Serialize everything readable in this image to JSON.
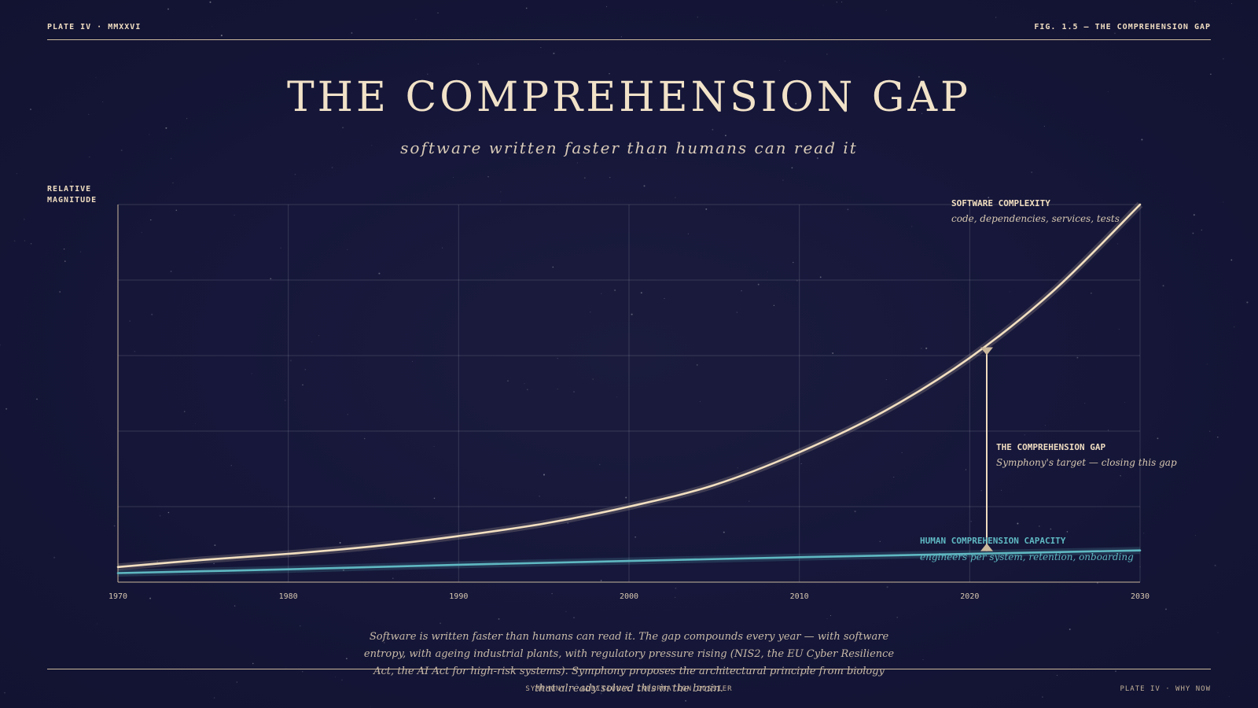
{
  "header": {
    "left": "PLATE  IV  ·  MMXXVI",
    "right": "FIG. 1.5  —  THE COMPREHENSION GAP"
  },
  "title": "THE COMPREHENSION GAP",
  "subtitle": "software written faster than humans can read it",
  "chart_data": {
    "type": "line",
    "ylabel_lines": [
      "RELATIVE",
      "MAGNITUDE"
    ],
    "xlim": [
      1970,
      2030
    ],
    "ylim": [
      0,
      100
    ],
    "x_ticks": [
      1970,
      1980,
      1990,
      2000,
      2010,
      2020,
      2030
    ],
    "grid": true,
    "series": [
      {
        "name": "SOFTWARE  COMPLEXITY",
        "description": "code, dependencies, services, tests",
        "color": "#f2dfc0",
        "x": [
          1970,
          1975,
          1980,
          1985,
          1990,
          1995,
          2000,
          2005,
          2010,
          2015,
          2020,
          2025,
          2030
        ],
        "y": [
          4.0,
          5.9,
          7.5,
          9.5,
          12.2,
          15.5,
          20.0,
          25.7,
          34.4,
          45.3,
          59.4,
          77.5,
          100.0
        ]
      },
      {
        "name": "HUMAN  COMPREHENSION  CAPACITY",
        "description": "engineers per system, retention, onboarding",
        "color": "#5fb8c2",
        "x": [
          1970,
          1980,
          1990,
          2000,
          2010,
          2020,
          2030
        ],
        "y": [
          2.4,
          3.4,
          4.6,
          5.6,
          6.6,
          7.5,
          8.4
        ]
      }
    ],
    "gap_annotation": {
      "x": 2021,
      "label": "THE  COMPREHENSION  GAP",
      "sublabel": "Symphony's target — closing this gap",
      "color": "#efdcc0"
    }
  },
  "footnote": "Software is written faster than humans can read it. The gap compounds every year — with software entropy, with ageing industrial plants, with regulatory pressure rising (NIS2, the EU Cyber Resilience Act, the AI Act for high-risk systems). Symphony proposes the architectural principle from biology that already solved this in the brain.",
  "footer": {
    "center": "SYMPHONY  ·  ADDITIONAL INFORMATION DOSSIER",
    "right": "PLATE  IV  ·  WHY NOW"
  }
}
